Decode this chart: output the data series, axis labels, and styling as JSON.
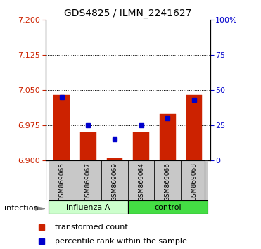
{
  "title": "GDS4825 / ILMN_2241627",
  "samples": [
    "GSM869065",
    "GSM869067",
    "GSM869069",
    "GSM869064",
    "GSM869066",
    "GSM869068"
  ],
  "red_values": [
    7.04,
    6.96,
    6.905,
    6.96,
    7.0,
    7.04
  ],
  "blue_values": [
    7.035,
    6.975,
    6.945,
    6.975,
    6.99,
    7.03
  ],
  "ymin": 6.9,
  "ymax": 7.2,
  "yticks": [
    6.9,
    6.975,
    7.05,
    7.125,
    7.2
  ],
  "right_yticks": [
    0,
    25,
    50,
    75,
    100
  ],
  "infection_label": "infection",
  "legend_red": "transformed count",
  "legend_blue": "percentile rank within the sample",
  "bar_base": 6.9,
  "bar_color": "#cc2200",
  "blue_color": "#0000cc",
  "influenza_color": "#ccffcc",
  "control_color": "#44dd44",
  "title_fontsize": 10,
  "tick_fontsize": 8,
  "sample_fontsize": 6.5
}
